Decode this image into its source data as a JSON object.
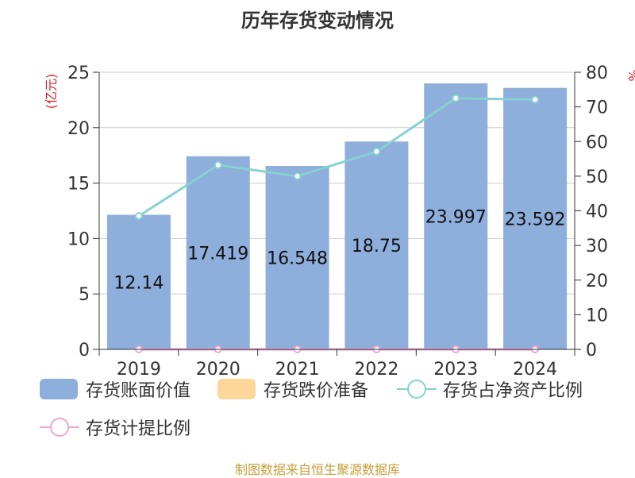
{
  "chart_data": {
    "type": "bar",
    "title": "历年存货变动情况",
    "categories": [
      "2019",
      "2020",
      "2021",
      "2022",
      "2023",
      "2024"
    ],
    "y_left": {
      "unit": "(亿元)",
      "ylim": [
        0,
        25
      ],
      "ticks": [
        0,
        5,
        10,
        15,
        20,
        25
      ]
    },
    "y_right": {
      "unit": "%",
      "ylim": [
        0,
        80
      ],
      "ticks": [
        0,
        10,
        20,
        30,
        40,
        50,
        60,
        70,
        80
      ]
    },
    "series": [
      {
        "name": "存货账面价值",
        "type": "bar",
        "axis": "left",
        "color": "#8eaedc",
        "values": [
          12.14,
          17.419,
          16.548,
          18.75,
          23.997,
          23.592
        ],
        "labels": [
          "12.14",
          "17.419",
          "16.548",
          "18.75",
          "23.997",
          "23.592"
        ]
      },
      {
        "name": "存货跌价准备",
        "type": "bar",
        "axis": "left",
        "color": "#fdd79a",
        "values": [
          0,
          0,
          0,
          0,
          0,
          0
        ]
      },
      {
        "name": "存货占净资产比例",
        "type": "line",
        "axis": "right",
        "color": "#86d1d1",
        "values": [
          38.5,
          53.2,
          50.0,
          57.1,
          72.5,
          72.1
        ]
      },
      {
        "name": "存货计提比例",
        "type": "line",
        "axis": "right",
        "color": "#e9a9d6",
        "values": [
          0,
          0,
          0,
          0,
          0,
          0
        ]
      }
    ],
    "grid": true,
    "legend_position": "bottom"
  },
  "source_note": "制图数据来自恒生聚源数据库"
}
